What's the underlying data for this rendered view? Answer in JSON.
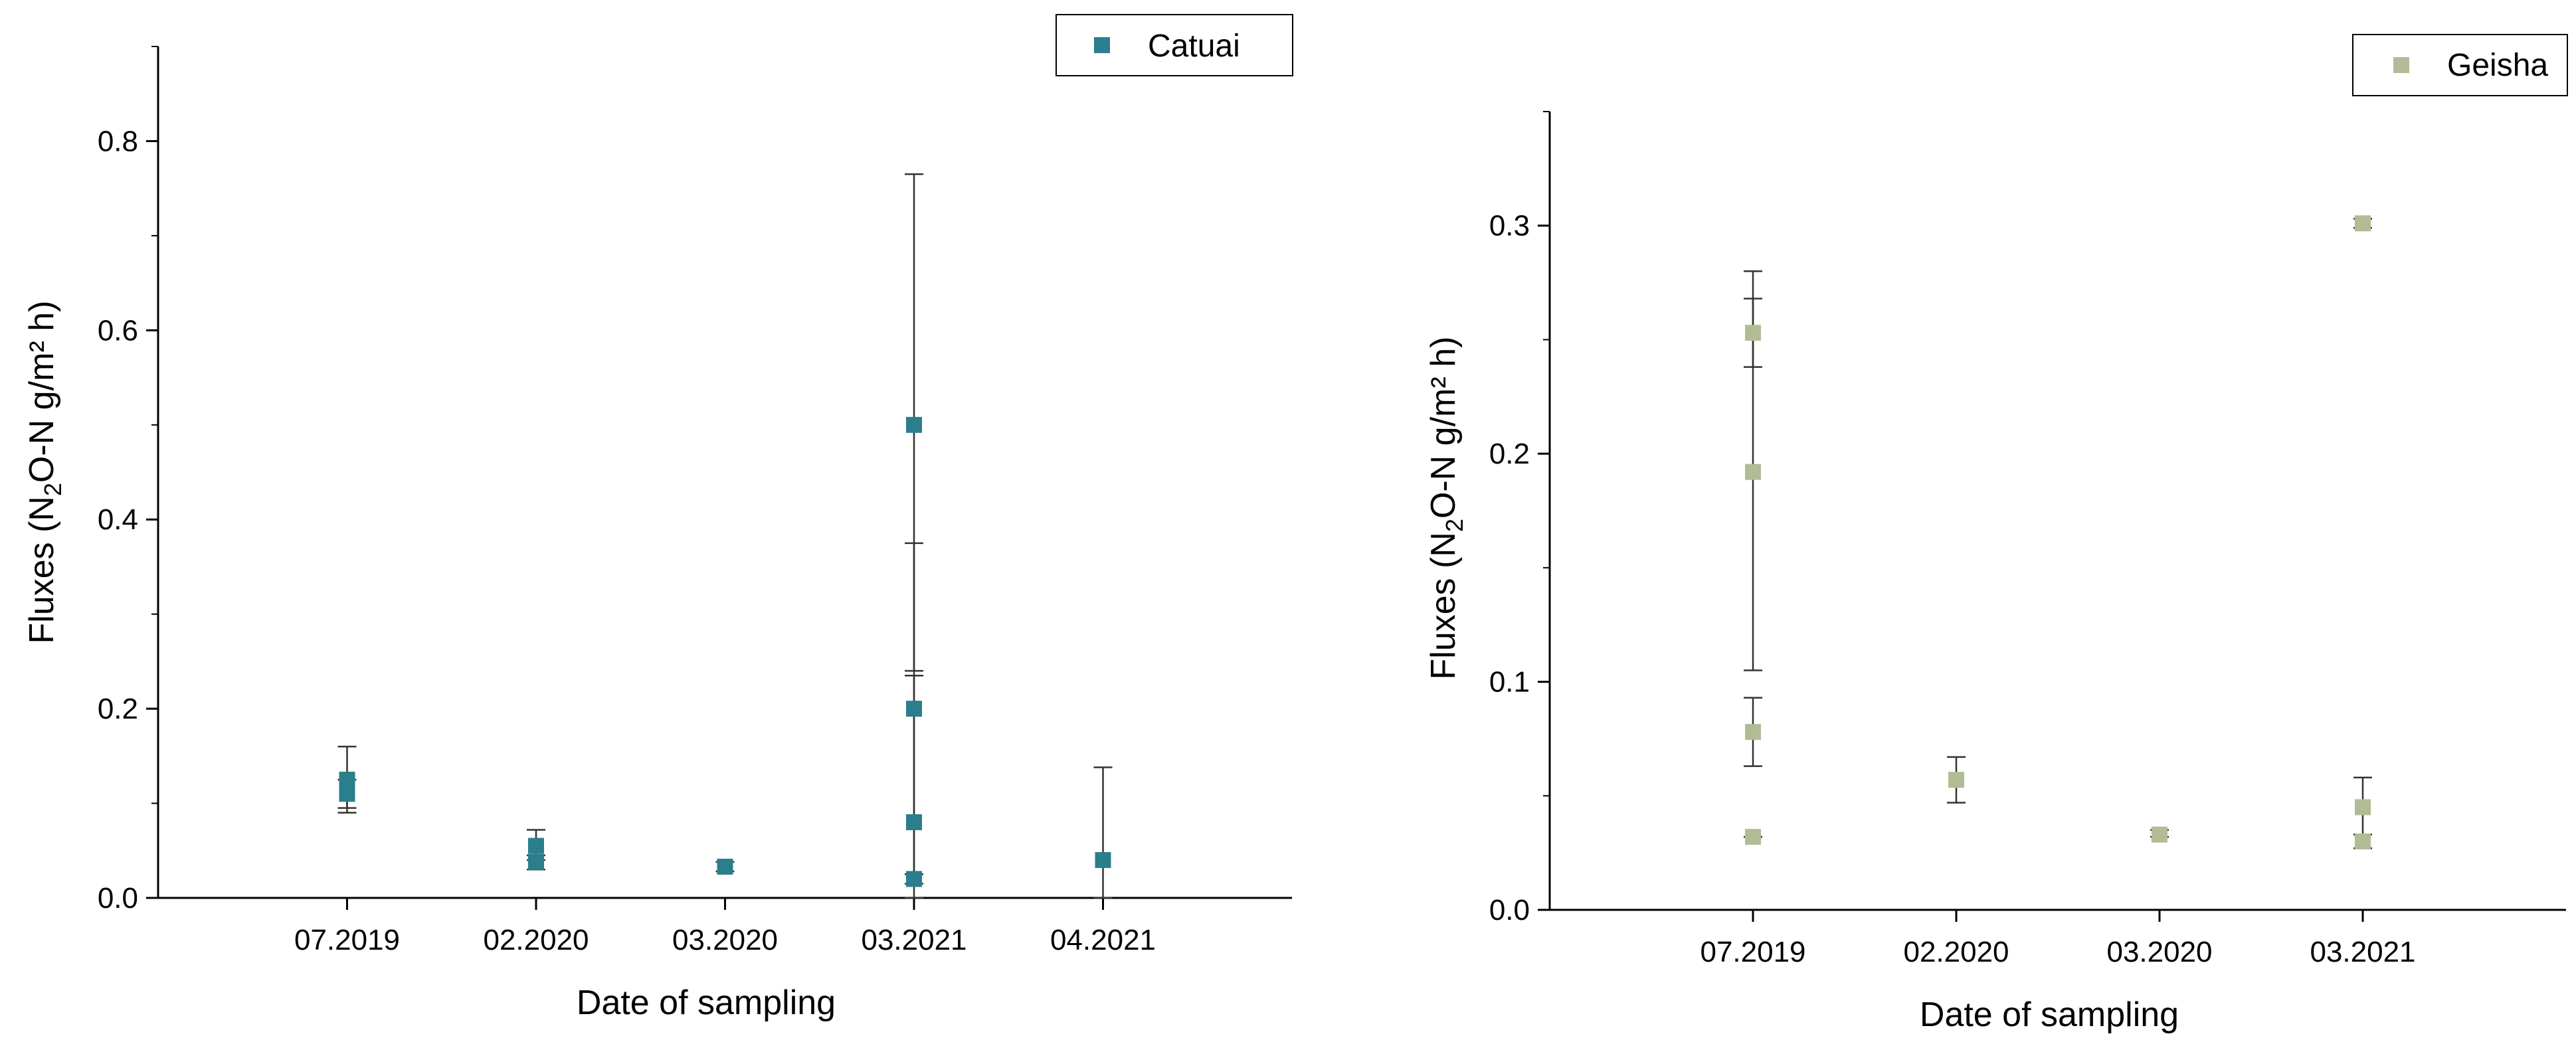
{
  "chart_data": [
    {
      "type": "scatter",
      "title": "",
      "xlabel": "Date of sampling",
      "ylabel": "Fluxes (N2O-N g/m² h)",
      "ylabel_parts": {
        "pre": "Fluxes (N",
        "sub": "2",
        "post": "O-N g/m² h)"
      },
      "categories": [
        "07.2019",
        "02.2020",
        "03.2020",
        "03.2021",
        "04.2021"
      ],
      "ylim": [
        0,
        0.9
      ],
      "yticks": [
        0.0,
        0.2,
        0.4,
        0.6,
        0.8
      ],
      "ytick_labels": [
        "0.0",
        "0.2",
        "0.4",
        "0.6",
        "0.8"
      ],
      "legend": {
        "label": "Catuai",
        "position": "top-right"
      },
      "color": "#2B7E8C",
      "series": [
        {
          "name": "Catuai",
          "points": [
            {
              "category": "07.2019",
              "y": 0.125,
              "lo": 0.09,
              "hi": 0.16
            },
            {
              "category": "07.2019",
              "y": 0.11,
              "lo": 0.095,
              "hi": 0.125
            },
            {
              "category": "02.2020",
              "y": 0.055,
              "lo": 0.04,
              "hi": 0.072
            },
            {
              "category": "02.2020",
              "y": 0.038,
              "lo": 0.03,
              "hi": 0.045
            },
            {
              "category": "03.2020",
              "y": 0.033,
              "lo": 0.028,
              "hi": 0.038
            },
            {
              "category": "03.2021",
              "y": 0.5,
              "lo": 0.24,
              "hi": 0.765
            },
            {
              "category": "03.2021",
              "y": 0.2,
              "lo": 0.025,
              "hi": 0.375
            },
            {
              "category": "03.2021",
              "y": 0.08,
              "lo": 0.0,
              "hi": 0.235
            },
            {
              "category": "03.2021",
              "y": 0.02,
              "lo": 0.015,
              "hi": 0.025
            },
            {
              "category": "04.2021",
              "y": 0.04,
              "lo": 0.0,
              "hi": 0.138
            }
          ]
        }
      ]
    },
    {
      "type": "scatter",
      "title": "",
      "xlabel": "Date of sampling",
      "ylabel": "Fluxes (N2O-N g/m² h)",
      "ylabel_parts": {
        "pre": "Fluxes (N",
        "sub": "2",
        "post": "O-N g/m² h)"
      },
      "categories": [
        "07.2019",
        "02.2020",
        "03.2020",
        "03.2021"
      ],
      "ylim": [
        0,
        0.35
      ],
      "yticks": [
        0.0,
        0.1,
        0.2,
        0.3
      ],
      "ytick_labels": [
        "0.0",
        "0.1",
        "0.2",
        "0.3"
      ],
      "legend": {
        "label": "Geisha",
        "position": "top-right"
      },
      "color": "#B2BC94",
      "series": [
        {
          "name": "Geisha",
          "points": [
            {
              "category": "07.2019",
              "y": 0.253,
              "lo": 0.238,
              "hi": 0.268
            },
            {
              "category": "07.2019",
              "y": 0.192,
              "lo": 0.105,
              "hi": 0.28
            },
            {
              "category": "07.2019",
              "y": 0.078,
              "lo": 0.063,
              "hi": 0.093
            },
            {
              "category": "07.2019",
              "y": 0.032,
              "lo": 0.032,
              "hi": 0.032
            },
            {
              "category": "02.2020",
              "y": 0.057,
              "lo": 0.047,
              "hi": 0.067
            },
            {
              "category": "03.2020",
              "y": 0.033,
              "lo": 0.032,
              "hi": 0.035
            },
            {
              "category": "03.2021",
              "y": 0.301,
              "lo": 0.299,
              "hi": 0.303
            },
            {
              "category": "03.2021",
              "y": 0.045,
              "lo": 0.033,
              "hi": 0.058
            },
            {
              "category": "03.2021",
              "y": 0.03,
              "lo": 0.027,
              "hi": 0.033
            }
          ]
        }
      ]
    }
  ]
}
